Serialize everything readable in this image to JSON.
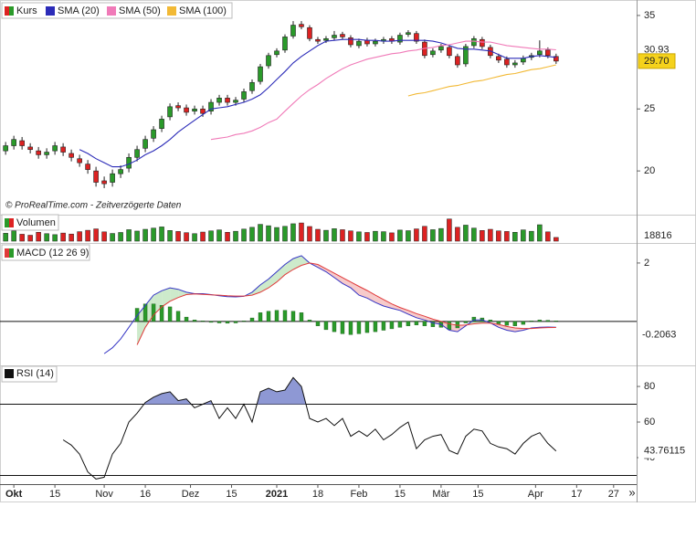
{
  "chart_data": [
    {
      "type": "candlestick",
      "name": "Kurs",
      "up_color": "#2a9a2a",
      "down_color": "#dd2222",
      "x": [
        -2,
        0,
        2,
        4,
        6,
        8,
        10,
        12,
        14,
        16,
        18,
        20,
        22,
        24,
        26,
        28,
        30,
        32,
        34,
        36,
        38,
        40,
        42,
        44,
        46,
        48,
        50,
        52,
        54,
        56,
        58,
        60,
        62,
        64,
        66,
        68,
        70,
        72,
        74,
        76,
        78,
        80,
        82,
        84,
        86,
        88,
        90,
        92,
        94,
        96,
        98,
        100,
        102,
        104,
        106,
        108,
        110,
        112,
        114,
        116,
        118,
        120,
        122,
        124,
        126,
        128,
        130,
        132
      ],
      "open": [
        21.5,
        21.9,
        22.3,
        21.8,
        21.5,
        21.2,
        21.5,
        21.8,
        21.3,
        20.9,
        20.5,
        20.0,
        19.3,
        19.2,
        19.8,
        20.2,
        21.0,
        21.7,
        22.5,
        23.3,
        24.3,
        25.3,
        25.1,
        24.8,
        25.0,
        24.8,
        25.6,
        26.0,
        25.6,
        25.9,
        26.7,
        27.6,
        29.2,
        30.4,
        30.9,
        32.5,
        33.9,
        33.5,
        32.1,
        32.0,
        32.3,
        32.7,
        32.3,
        31.4,
        32.0,
        31.6,
        31.9,
        32.2,
        31.8,
        32.7,
        32.8,
        31.8,
        30.4,
        30.9,
        31.2,
        30.2,
        29.4,
        31.4,
        32.1,
        31.2,
        30.2,
        29.9,
        29.3,
        29.6,
        30.1,
        30.4,
        30.9,
        30.2
      ],
      "high": [
        22.2,
        22.7,
        22.6,
        22.1,
        21.8,
        21.7,
        22.2,
        22.1,
        21.6,
        21.2,
        20.8,
        20.3,
        19.6,
        20.1,
        20.4,
        21.3,
        21.9,
        22.7,
        23.5,
        24.4,
        25.5,
        25.6,
        25.4,
        25.3,
        25.3,
        25.9,
        26.3,
        26.3,
        26.1,
        26.9,
        27.8,
        29.4,
        30.6,
        31.1,
        32.7,
        34.3,
        34.3,
        33.8,
        32.4,
        32.5,
        33.1,
        33.0,
        32.6,
        32.2,
        32.3,
        32.2,
        32.4,
        32.5,
        32.9,
        33.2,
        33.1,
        32.1,
        31.1,
        31.6,
        31.5,
        30.5,
        31.6,
        32.5,
        32.4,
        31.5,
        30.5,
        30.2,
        29.8,
        30.3,
        30.6,
        32.0,
        31.2,
        30.5
      ],
      "low": [
        21.2,
        21.6,
        21.6,
        21.3,
        20.9,
        20.9,
        21.2,
        21.1,
        20.7,
        20.3,
        19.8,
        18.9,
        18.8,
        18.9,
        19.5,
        19.9,
        20.7,
        21.4,
        22.2,
        23.0,
        24.0,
        24.8,
        24.4,
        24.5,
        24.3,
        24.5,
        25.3,
        25.3,
        25.3,
        25.6,
        26.4,
        27.3,
        28.9,
        30.1,
        30.6,
        32.2,
        33.3,
        31.9,
        31.6,
        31.7,
        32.0,
        32.1,
        31.2,
        31.1,
        31.3,
        31.3,
        31.6,
        31.6,
        31.5,
        32.4,
        31.6,
        30.0,
        30.1,
        30.6,
        30.0,
        29.0,
        29.1,
        31.1,
        31.0,
        30.0,
        29.5,
        29.0,
        29.0,
        29.3,
        29.8,
        30.1,
        30.0,
        29.4
      ],
      "close": [
        21.9,
        22.4,
        21.9,
        21.6,
        21.2,
        21.4,
        21.9,
        21.4,
        21.0,
        20.6,
        20.1,
        19.2,
        19.1,
        19.8,
        20.1,
        21.0,
        21.6,
        22.4,
        23.2,
        24.1,
        25.2,
        25.1,
        24.7,
        25.0,
        24.6,
        25.6,
        26.0,
        25.6,
        25.8,
        26.6,
        27.5,
        29.1,
        30.3,
        30.8,
        32.4,
        33.8,
        33.6,
        32.2,
        31.9,
        32.2,
        32.6,
        32.4,
        31.5,
        31.9,
        31.6,
        31.9,
        32.1,
        31.9,
        32.6,
        32.9,
        31.9,
        30.3,
        30.8,
        31.3,
        30.3,
        29.3,
        31.3,
        32.2,
        31.3,
        30.3,
        29.8,
        29.3,
        29.5,
        30.0,
        30.3,
        30.8,
        30.3,
        29.7
      ],
      "close_label": "29.70",
      "series": [
        {
          "name": "SMA (20)",
          "color": "#2b2bb8",
          "values": [
            null,
            null,
            null,
            null,
            null,
            null,
            null,
            null,
            null,
            21.6,
            21.3,
            20.9,
            20.6,
            20.3,
            20.3,
            20.5,
            20.8,
            21.2,
            21.5,
            21.9,
            22.4,
            23.0,
            23.5,
            24.0,
            24.5,
            25.0,
            25.1,
            25.2,
            25.4,
            25.6,
            25.9,
            26.3,
            27.0,
            27.8,
            28.6,
            29.5,
            30.2,
            30.8,
            31.4,
            31.9,
            32.0,
            32.1,
            32.1,
            32.1,
            32.0,
            32.0,
            31.9,
            31.9,
            32.0,
            32.0,
            32.0,
            32.0,
            31.9,
            31.7,
            31.4,
            31.1,
            31.0,
            31.0,
            30.9,
            30.8,
            30.4,
            30.0,
            30.0,
            30.0,
            30.2,
            30.3,
            30.2,
            30.1
          ]
        },
        {
          "name": "SMA (50)",
          "color": "#f07ab8",
          "last_label": "30.93",
          "values": [
            null,
            null,
            null,
            null,
            null,
            null,
            null,
            null,
            null,
            null,
            null,
            null,
            null,
            null,
            null,
            null,
            null,
            null,
            null,
            null,
            null,
            null,
            null,
            null,
            null,
            22.4,
            22.5,
            22.6,
            22.8,
            22.9,
            23.1,
            23.4,
            23.8,
            24.1,
            24.8,
            25.5,
            26.2,
            26.8,
            27.3,
            27.9,
            28.4,
            28.9,
            29.3,
            29.6,
            29.9,
            30.1,
            30.3,
            30.5,
            30.6,
            30.8,
            30.9,
            31.1,
            31.2,
            31.4,
            31.5,
            31.7,
            31.9,
            31.9,
            31.8,
            31.8,
            31.6,
            31.4,
            31.3,
            31.2,
            31.1,
            31.0,
            31.0,
            30.93
          ]
        },
        {
          "name": "SMA (100)",
          "color": "#f2b935",
          "values": [
            null,
            null,
            null,
            null,
            null,
            null,
            null,
            null,
            null,
            null,
            null,
            null,
            null,
            null,
            null,
            null,
            null,
            null,
            null,
            null,
            null,
            null,
            null,
            null,
            null,
            null,
            null,
            null,
            null,
            null,
            null,
            null,
            null,
            null,
            null,
            null,
            null,
            null,
            null,
            null,
            null,
            null,
            null,
            null,
            null,
            null,
            null,
            null,
            null,
            26.2,
            26.4,
            26.5,
            26.7,
            26.9,
            27.1,
            27.2,
            27.4,
            27.6,
            27.7,
            27.9,
            28.1,
            28.3,
            28.4,
            28.6,
            28.8,
            28.9,
            29.1,
            29.3
          ]
        }
      ],
      "log": true,
      "ylim": [
        17.2,
        36.4
      ],
      "yticks": [
        20,
        25,
        35
      ],
      "source": "© ProRealTime.com - Zeitverzögerte Daten"
    },
    {
      "type": "bar",
      "name": "Volumen",
      "ylim": [
        0,
        120000
      ],
      "values": [
        40000,
        52000,
        35000,
        30000,
        45000,
        38000,
        33000,
        41000,
        36000,
        48000,
        55000,
        62000,
        47000,
        39000,
        44000,
        58000,
        51000,
        60000,
        66000,
        72000,
        54000,
        49000,
        43000,
        38000,
        46000,
        52000,
        57000,
        45000,
        50000,
        61000,
        70000,
        85000,
        78000,
        69000,
        75000,
        88000,
        92000,
        74000,
        60000,
        55000,
        63000,
        58000,
        52000,
        47000,
        44000,
        50000,
        48000,
        42000,
        56000,
        53000,
        62000,
        75000,
        58000,
        64000,
        112000,
        70000,
        81000,
        66000,
        54000,
        60000,
        52000,
        49000,
        45000,
        57000,
        50000,
        83000,
        47000,
        18816
      ]
    },
    {
      "type": "macd",
      "name": "MACD (12 26 9)",
      "macd_color": "#3434c4",
      "signal_color": "#e03a3a",
      "hist_color": "#2a9a2a",
      "up_fill": "#cdeacb",
      "down_fill": "#f6caca",
      "macd": [
        null,
        null,
        null,
        null,
        null,
        null,
        null,
        null,
        null,
        null,
        null,
        null,
        -1.1,
        -0.9,
        -0.6,
        -0.2,
        0.2,
        0.55,
        0.9,
        1.05,
        1.15,
        1.1,
        1.0,
        0.95,
        0.95,
        0.92,
        0.88,
        0.85,
        0.84,
        0.86,
        1.0,
        1.25,
        1.45,
        1.7,
        1.95,
        2.15,
        2.25,
        2.0,
        1.85,
        1.7,
        1.5,
        1.3,
        1.15,
        0.9,
        0.8,
        0.65,
        0.53,
        0.45,
        0.38,
        0.25,
        0.13,
        0.05,
        -0.05,
        -0.1,
        -0.3,
        -0.35,
        -0.15,
        0.05,
        0.05,
        -0.05,
        -0.2,
        -0.3,
        -0.35,
        -0.3,
        -0.22,
        -0.2,
        -0.19,
        -0.2
      ],
      "signal": [
        null,
        null,
        null,
        null,
        null,
        null,
        null,
        null,
        null,
        null,
        null,
        null,
        null,
        null,
        null,
        null,
        -0.8,
        -0.2,
        0.22,
        0.5,
        0.69,
        0.82,
        0.92,
        0.94,
        0.93,
        0.91,
        0.9,
        0.88,
        0.87,
        0.87,
        0.9,
        1.0,
        1.15,
        1.35,
        1.6,
        1.78,
        1.92,
        2.0,
        1.95,
        1.8,
        1.65,
        1.5,
        1.35,
        1.2,
        1.06,
        0.9,
        0.75,
        0.6,
        0.48,
        0.38,
        0.27,
        0.18,
        0.08,
        0.0,
        -0.08,
        -0.13,
        -0.12,
        -0.08,
        -0.06,
        -0.06,
        -0.1,
        -0.17,
        -0.22,
        -0.24,
        -0.24,
        -0.22,
        -0.21,
        -0.2063
      ],
      "histogram": [
        null,
        null,
        null,
        null,
        null,
        null,
        null,
        null,
        null,
        null,
        null,
        null,
        null,
        null,
        null,
        null,
        0.45,
        0.6,
        0.6,
        0.55,
        0.5,
        0.35,
        0.15,
        0.05,
        0.02,
        -0.03,
        -0.05,
        -0.06,
        -0.05,
        0.02,
        0.12,
        0.3,
        0.35,
        0.38,
        0.38,
        0.35,
        0.3,
        0.05,
        -0.15,
        -0.28,
        -0.35,
        -0.42,
        -0.45,
        -0.42,
        -0.38,
        -0.35,
        -0.3,
        -0.25,
        -0.2,
        -0.15,
        -0.12,
        -0.15,
        -0.18,
        -0.2,
        -0.28,
        -0.22,
        -0.05,
        0.15,
        0.12,
        0.05,
        -0.08,
        -0.13,
        -0.15,
        -0.1,
        0.02,
        0.05,
        0.04,
        0.02
      ],
      "ylim": [
        -1.44,
        2.56
      ],
      "yticks": [
        2
      ],
      "hlines": [
        0
      ]
    },
    {
      "type": "line",
      "name": "RSI (14)",
      "color": "#111111",
      "fill_color": "#8e98d4",
      "values": [
        null,
        null,
        null,
        null,
        null,
        null,
        null,
        50,
        47,
        42,
        32,
        28,
        29,
        42,
        48,
        60,
        65,
        71,
        74,
        76,
        77,
        72,
        73,
        68,
        70,
        72,
        62,
        68,
        62,
        70,
        60,
        77,
        79,
        77,
        78,
        85,
        80,
        62,
        60,
        62,
        58,
        62,
        52,
        55,
        52,
        56,
        50,
        53,
        57,
        60,
        45,
        50,
        52,
        53,
        44,
        42,
        52,
        56,
        55,
        48,
        46,
        45,
        42,
        48,
        52,
        54,
        48,
        43.76115
      ],
      "ylim": [
        25.1,
        90.3
      ],
      "yticks": [
        40,
        60,
        80
      ],
      "hlines": [
        30,
        70
      ],
      "xlim": [
        -2.7,
        151.6
      ],
      "xticks": [
        {
          "value": 0,
          "label": "Okt"
        },
        {
          "value": 10,
          "label": "15"
        },
        {
          "value": 22,
          "label": "Nov"
        },
        {
          "value": 32,
          "label": "16"
        },
        {
          "value": 43,
          "label": "Dez"
        },
        {
          "value": 53,
          "label": "15"
        },
        {
          "value": 64,
          "label": "2021"
        },
        {
          "value": 74,
          "label": "18"
        },
        {
          "value": 84,
          "label": "Feb"
        },
        {
          "value": 94,
          "label": "15"
        },
        {
          "value": 104,
          "label": "Mär"
        },
        {
          "value": 113,
          "label": "15"
        },
        {
          "value": 127,
          "label": "Apr"
        },
        {
          "value": 137,
          "label": "17"
        },
        {
          "value": 146,
          "label": "27"
        }
      ],
      "scroll": "»"
    }
  ]
}
